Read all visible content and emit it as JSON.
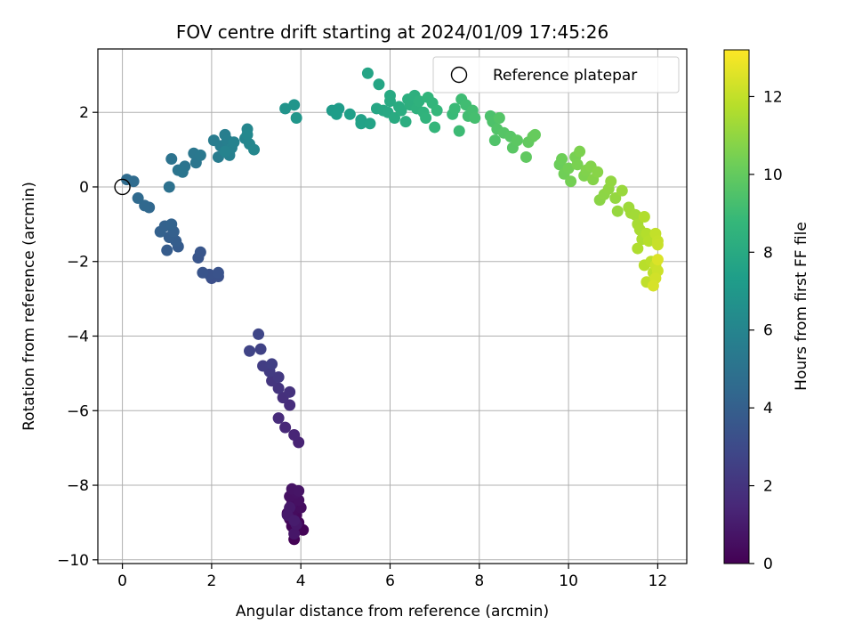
{
  "chart_data": {
    "type": "scatter",
    "title": "FOV centre drift starting at 2024/01/09 17:45:26",
    "xlabel": "Angular distance from reference (arcmin)",
    "ylabel": "Rotation from reference (arcmin)",
    "xlim": [
      -0.55,
      12.65
    ],
    "ylim": [
      -10.1,
      3.7
    ],
    "xticks": [
      0,
      2,
      4,
      6,
      8,
      10,
      12
    ],
    "xtick_labels": [
      "0",
      "2",
      "4",
      "6",
      "8",
      "10",
      "12"
    ],
    "yticks": [
      -10,
      -8,
      -6,
      -4,
      -2,
      0,
      2
    ],
    "ytick_labels": [
      "−10",
      "−8",
      "−6",
      "−4",
      "−2",
      "0",
      "2"
    ],
    "grid": true,
    "legend": {
      "placement": "top-right",
      "entries": [
        {
          "label": "Reference platepar",
          "marker": "open-circle"
        }
      ]
    },
    "reference_point": {
      "x": 0,
      "y": 0
    },
    "colorbar": {
      "label": "Hours from first FF file",
      "range": [
        0,
        13.2
      ],
      "ticks": [
        0,
        2,
        4,
        6,
        8,
        10,
        12
      ],
      "tick_labels": [
        "0",
        "2",
        "4",
        "6",
        "8",
        "10",
        "12"
      ],
      "colormap": "viridis"
    },
    "colormap_stops": [
      "#440154",
      "#482878",
      "#3e4989",
      "#31688e",
      "#26828e",
      "#1f9e89",
      "#35b779",
      "#6ece58",
      "#b5de2b",
      "#fde725"
    ],
    "points": [
      {
        "x": 3.85,
        "y": -9.45,
        "t": 0.05
      },
      {
        "x": 4.05,
        "y": -9.2,
        "t": 0.1
      },
      {
        "x": 3.8,
        "y": -9.1,
        "t": 0.15
      },
      {
        "x": 3.95,
        "y": -9.0,
        "t": 0.2
      },
      {
        "x": 3.75,
        "y": -8.9,
        "t": 0.25
      },
      {
        "x": 3.9,
        "y": -8.8,
        "t": 0.3
      },
      {
        "x": 3.7,
        "y": -8.75,
        "t": 0.35
      },
      {
        "x": 3.85,
        "y": -8.65,
        "t": 0.4
      },
      {
        "x": 4.0,
        "y": -8.6,
        "t": 0.45
      },
      {
        "x": 3.8,
        "y": -8.5,
        "t": 0.5
      },
      {
        "x": 3.95,
        "y": -8.4,
        "t": 0.55
      },
      {
        "x": 3.75,
        "y": -8.3,
        "t": 0.6
      },
      {
        "x": 3.9,
        "y": -8.2,
        "t": 0.65
      },
      {
        "x": 3.8,
        "y": -8.1,
        "t": 0.7
      },
      {
        "x": 3.95,
        "y": -8.15,
        "t": 0.75
      },
      {
        "x": 3.85,
        "y": -9.3,
        "t": 0.8
      },
      {
        "x": 3.9,
        "y": -9.05,
        "t": 0.85
      },
      {
        "x": 3.75,
        "y": -8.6,
        "t": 0.9
      },
      {
        "x": 3.7,
        "y": -8.8,
        "t": 0.95
      },
      {
        "x": 3.85,
        "y": -8.95,
        "t": 1.0
      },
      {
        "x": 3.95,
        "y": -6.85,
        "t": 1.3
      },
      {
        "x": 3.85,
        "y": -6.65,
        "t": 1.4
      },
      {
        "x": 3.65,
        "y": -6.45,
        "t": 1.5
      },
      {
        "x": 3.5,
        "y": -6.2,
        "t": 1.6
      },
      {
        "x": 3.75,
        "y": -5.85,
        "t": 1.7
      },
      {
        "x": 3.6,
        "y": -5.65,
        "t": 1.8
      },
      {
        "x": 3.75,
        "y": -5.5,
        "t": 1.9
      },
      {
        "x": 3.5,
        "y": -5.4,
        "t": 2.0
      },
      {
        "x": 3.35,
        "y": -5.2,
        "t": 2.1
      },
      {
        "x": 3.5,
        "y": -5.1,
        "t": 2.2
      },
      {
        "x": 3.3,
        "y": -4.95,
        "t": 2.3
      },
      {
        "x": 3.15,
        "y": -4.8,
        "t": 2.4
      },
      {
        "x": 3.35,
        "y": -4.75,
        "t": 2.5
      },
      {
        "x": 3.1,
        "y": -4.35,
        "t": 2.6
      },
      {
        "x": 2.85,
        "y": -4.4,
        "t": 2.7
      },
      {
        "x": 3.05,
        "y": -3.95,
        "t": 2.8
      },
      {
        "x": 2.0,
        "y": -2.45,
        "t": 3.2
      },
      {
        "x": 2.15,
        "y": -2.4,
        "t": 3.3
      },
      {
        "x": 1.95,
        "y": -2.35,
        "t": 3.35
      },
      {
        "x": 2.15,
        "y": -2.3,
        "t": 3.4
      },
      {
        "x": 1.8,
        "y": -2.3,
        "t": 3.45
      },
      {
        "x": 1.7,
        "y": -1.9,
        "t": 3.5
      },
      {
        "x": 1.75,
        "y": -1.75,
        "t": 3.55
      },
      {
        "x": 1.25,
        "y": -1.6,
        "t": 3.8
      },
      {
        "x": 1.0,
        "y": -1.7,
        "t": 3.85
      },
      {
        "x": 1.2,
        "y": -1.45,
        "t": 3.9
      },
      {
        "x": 1.05,
        "y": -1.35,
        "t": 3.95
      },
      {
        "x": 1.15,
        "y": -1.2,
        "t": 4.0
      },
      {
        "x": 0.85,
        "y": -1.2,
        "t": 4.05
      },
      {
        "x": 0.95,
        "y": -1.05,
        "t": 4.1
      },
      {
        "x": 1.1,
        "y": -1.0,
        "t": 4.15
      },
      {
        "x": 0.6,
        "y": -0.55,
        "t": 4.4
      },
      {
        "x": 0.5,
        "y": -0.5,
        "t": 4.45
      },
      {
        "x": 0.35,
        "y": -0.3,
        "t": 4.5
      },
      {
        "x": 0.25,
        "y": 0.15,
        "t": 4.6
      },
      {
        "x": 0.1,
        "y": 0.2,
        "t": 4.65
      },
      {
        "x": 1.05,
        "y": 0.0,
        "t": 4.9
      },
      {
        "x": 1.1,
        "y": 0.75,
        "t": 5.0
      },
      {
        "x": 1.25,
        "y": 0.45,
        "t": 5.05
      },
      {
        "x": 1.4,
        "y": 0.55,
        "t": 5.1
      },
      {
        "x": 1.35,
        "y": 0.4,
        "t": 5.15
      },
      {
        "x": 1.65,
        "y": 0.65,
        "t": 5.2
      },
      {
        "x": 1.6,
        "y": 0.9,
        "t": 5.25
      },
      {
        "x": 1.75,
        "y": 0.85,
        "t": 5.3
      },
      {
        "x": 2.05,
        "y": 1.25,
        "t": 5.5
      },
      {
        "x": 2.15,
        "y": 0.8,
        "t": 5.55
      },
      {
        "x": 2.2,
        "y": 1.1,
        "t": 5.6
      },
      {
        "x": 2.3,
        "y": 1.4,
        "t": 5.65
      },
      {
        "x": 2.35,
        "y": 1.25,
        "t": 5.7
      },
      {
        "x": 2.4,
        "y": 0.85,
        "t": 5.75
      },
      {
        "x": 2.45,
        "y": 1.05,
        "t": 5.8
      },
      {
        "x": 2.5,
        "y": 1.2,
        "t": 5.85
      },
      {
        "x": 2.3,
        "y": 0.95,
        "t": 5.9
      },
      {
        "x": 2.75,
        "y": 1.3,
        "t": 6.0
      },
      {
        "x": 2.8,
        "y": 1.55,
        "t": 6.05
      },
      {
        "x": 2.85,
        "y": 1.15,
        "t": 6.1
      },
      {
        "x": 2.95,
        "y": 1.0,
        "t": 6.15
      },
      {
        "x": 2.8,
        "y": 1.4,
        "t": 6.2
      },
      {
        "x": 3.65,
        "y": 2.1,
        "t": 6.8
      },
      {
        "x": 3.85,
        "y": 2.2,
        "t": 6.85
      },
      {
        "x": 3.9,
        "y": 1.85,
        "t": 6.9
      },
      {
        "x": 4.7,
        "y": 2.05,
        "t": 7.2
      },
      {
        "x": 4.85,
        "y": 2.1,
        "t": 7.25
      },
      {
        "x": 4.8,
        "y": 1.95,
        "t": 7.3
      },
      {
        "x": 5.1,
        "y": 1.95,
        "t": 7.4
      },
      {
        "x": 5.35,
        "y": 1.8,
        "t": 7.5
      },
      {
        "x": 5.35,
        "y": 1.7,
        "t": 7.55
      },
      {
        "x": 5.55,
        "y": 1.7,
        "t": 7.6
      },
      {
        "x": 5.5,
        "y": 3.05,
        "t": 7.7
      },
      {
        "x": 5.75,
        "y": 2.75,
        "t": 7.75
      },
      {
        "x": 5.7,
        "y": 2.1,
        "t": 7.8
      },
      {
        "x": 5.85,
        "y": 2.05,
        "t": 7.85
      },
      {
        "x": 5.95,
        "y": 2.0,
        "t": 7.9
      },
      {
        "x": 6.0,
        "y": 2.45,
        "t": 7.95
      },
      {
        "x": 6.0,
        "y": 2.3,
        "t": 8.0
      },
      {
        "x": 6.1,
        "y": 1.85,
        "t": 8.05
      },
      {
        "x": 6.2,
        "y": 2.15,
        "t": 8.1
      },
      {
        "x": 6.25,
        "y": 2.05,
        "t": 8.15
      },
      {
        "x": 6.35,
        "y": 1.75,
        "t": 8.2
      },
      {
        "x": 6.4,
        "y": 2.35,
        "t": 8.25
      },
      {
        "x": 6.45,
        "y": 2.2,
        "t": 8.3
      },
      {
        "x": 6.55,
        "y": 2.45,
        "t": 8.35
      },
      {
        "x": 6.6,
        "y": 2.1,
        "t": 8.4
      },
      {
        "x": 6.65,
        "y": 2.3,
        "t": 8.45
      },
      {
        "x": 6.75,
        "y": 2.0,
        "t": 8.5
      },
      {
        "x": 6.8,
        "y": 1.85,
        "t": 8.55
      },
      {
        "x": 6.85,
        "y": 2.4,
        "t": 8.6
      },
      {
        "x": 6.95,
        "y": 2.25,
        "t": 8.65
      },
      {
        "x": 7.0,
        "y": 1.6,
        "t": 8.7
      },
      {
        "x": 7.05,
        "y": 2.05,
        "t": 8.75
      },
      {
        "x": 7.4,
        "y": 1.95,
        "t": 8.9
      },
      {
        "x": 7.45,
        "y": 2.1,
        "t": 8.95
      },
      {
        "x": 7.55,
        "y": 1.5,
        "t": 9.0
      },
      {
        "x": 7.6,
        "y": 2.35,
        "t": 9.05
      },
      {
        "x": 7.7,
        "y": 2.2,
        "t": 9.1
      },
      {
        "x": 7.75,
        "y": 1.9,
        "t": 9.15
      },
      {
        "x": 7.85,
        "y": 2.05,
        "t": 9.2
      },
      {
        "x": 7.9,
        "y": 1.85,
        "t": 9.25
      },
      {
        "x": 8.25,
        "y": 1.9,
        "t": 9.4
      },
      {
        "x": 8.3,
        "y": 1.75,
        "t": 9.45
      },
      {
        "x": 8.35,
        "y": 1.25,
        "t": 9.5
      },
      {
        "x": 8.4,
        "y": 1.55,
        "t": 9.55
      },
      {
        "x": 8.45,
        "y": 1.85,
        "t": 9.6
      },
      {
        "x": 8.55,
        "y": 1.45,
        "t": 9.65
      },
      {
        "x": 8.7,
        "y": 1.35,
        "t": 9.7
      },
      {
        "x": 8.75,
        "y": 1.05,
        "t": 9.75
      },
      {
        "x": 8.85,
        "y": 1.25,
        "t": 9.8
      },
      {
        "x": 9.05,
        "y": 0.8,
        "t": 9.9
      },
      {
        "x": 9.1,
        "y": 1.2,
        "t": 9.95
      },
      {
        "x": 9.2,
        "y": 1.35,
        "t": 10.0
      },
      {
        "x": 9.25,
        "y": 1.4,
        "t": 10.05
      },
      {
        "x": 9.8,
        "y": 0.6,
        "t": 10.2
      },
      {
        "x": 9.85,
        "y": 0.75,
        "t": 10.25
      },
      {
        "x": 9.9,
        "y": 0.35,
        "t": 10.3
      },
      {
        "x": 10.0,
        "y": 0.5,
        "t": 10.35
      },
      {
        "x": 10.05,
        "y": 0.15,
        "t": 10.4
      },
      {
        "x": 10.15,
        "y": 0.8,
        "t": 10.45
      },
      {
        "x": 10.2,
        "y": 0.6,
        "t": 10.5
      },
      {
        "x": 10.25,
        "y": 0.95,
        "t": 10.55
      },
      {
        "x": 10.35,
        "y": 0.3,
        "t": 10.6
      },
      {
        "x": 10.4,
        "y": 0.45,
        "t": 10.65
      },
      {
        "x": 10.5,
        "y": 0.55,
        "t": 10.7
      },
      {
        "x": 10.55,
        "y": 0.2,
        "t": 10.75
      },
      {
        "x": 10.65,
        "y": 0.4,
        "t": 10.8
      },
      {
        "x": 10.7,
        "y": -0.35,
        "t": 10.85
      },
      {
        "x": 10.8,
        "y": -0.2,
        "t": 10.9
      },
      {
        "x": 10.9,
        "y": -0.05,
        "t": 10.95
      },
      {
        "x": 10.95,
        "y": 0.15,
        "t": 11.0
      },
      {
        "x": 11.05,
        "y": -0.3,
        "t": 11.05
      },
      {
        "x": 11.1,
        "y": -0.65,
        "t": 11.1
      },
      {
        "x": 11.2,
        "y": -0.1,
        "t": 11.15
      },
      {
        "x": 11.35,
        "y": -0.55,
        "t": 11.25
      },
      {
        "x": 11.4,
        "y": -0.7,
        "t": 11.3
      },
      {
        "x": 11.5,
        "y": -0.75,
        "t": 11.35
      },
      {
        "x": 11.55,
        "y": -1.0,
        "t": 11.45
      },
      {
        "x": 11.6,
        "y": -1.15,
        "t": 11.5
      },
      {
        "x": 11.65,
        "y": -1.4,
        "t": 11.55
      },
      {
        "x": 11.55,
        "y": -1.65,
        "t": 11.6
      },
      {
        "x": 11.7,
        "y": -0.8,
        "t": 11.65
      },
      {
        "x": 11.75,
        "y": -1.25,
        "t": 11.7
      },
      {
        "x": 11.8,
        "y": -1.45,
        "t": 11.75
      },
      {
        "x": 11.7,
        "y": -2.1,
        "t": 11.8
      },
      {
        "x": 11.85,
        "y": -2.0,
        "t": 11.85
      },
      {
        "x": 11.9,
        "y": -2.3,
        "t": 11.9
      },
      {
        "x": 11.75,
        "y": -2.55,
        "t": 11.95
      },
      {
        "x": 11.95,
        "y": -1.25,
        "t": 12.0
      },
      {
        "x": 12.0,
        "y": -1.45,
        "t": 12.05
      },
      {
        "x": 12.0,
        "y": -1.55,
        "t": 12.1
      },
      {
        "x": 11.95,
        "y": -2.1,
        "t": 12.15
      },
      {
        "x": 12.0,
        "y": -2.25,
        "t": 12.2
      },
      {
        "x": 11.95,
        "y": -2.45,
        "t": 12.3
      },
      {
        "x": 11.9,
        "y": -2.65,
        "t": 12.4
      },
      {
        "x": 12.0,
        "y": -1.95,
        "t": 12.5
      }
    ]
  }
}
